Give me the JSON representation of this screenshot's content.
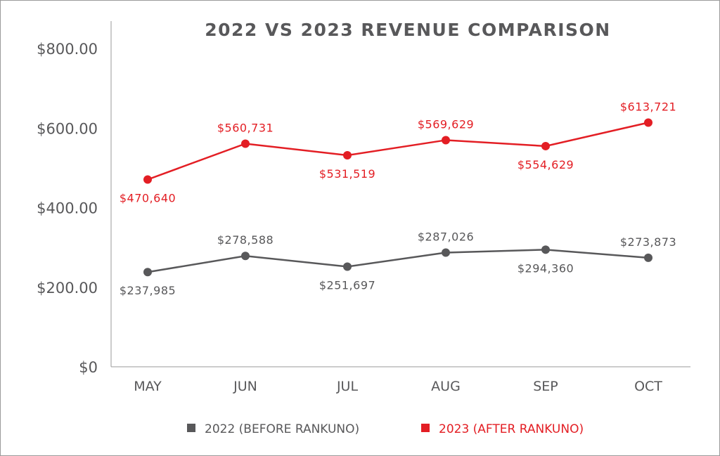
{
  "chart_data": {
    "type": "line",
    "title": "2022 VS 2023 REVENUE COMPARISON",
    "xlabel": "",
    "ylabel": "",
    "categories": [
      "MAY",
      "JUN",
      "JUL",
      "AUG",
      "SEP",
      "OCT"
    ],
    "y_ticks": [
      "$0",
      "$200.00",
      "$400.00",
      "$600.00",
      "$800.00"
    ],
    "y_tick_values": [
      0,
      200,
      400,
      600,
      800
    ],
    "ylim": [
      0,
      800
    ],
    "y_unit_note_shown": false,
    "grid": false,
    "legend_position": "bottom",
    "series": [
      {
        "name": "2022 (BEFORE RANKUNO)",
        "color": "#58585a",
        "values": [
          237985,
          278588,
          251697,
          287026,
          294360,
          273873
        ],
        "labels": [
          "$237,985",
          "$278,588",
          "$251,697",
          "$287,026",
          "$294,360",
          "$273,873"
        ]
      },
      {
        "name": "2023 (AFTER RANKUNO)",
        "color": "#e31e24",
        "values": [
          470640,
          560731,
          531519,
          569629,
          554629,
          613721
        ],
        "labels": [
          "$470,640",
          "$560,731",
          "$531,519",
          "$569,629",
          "$554,629",
          "$613,721"
        ]
      }
    ]
  }
}
